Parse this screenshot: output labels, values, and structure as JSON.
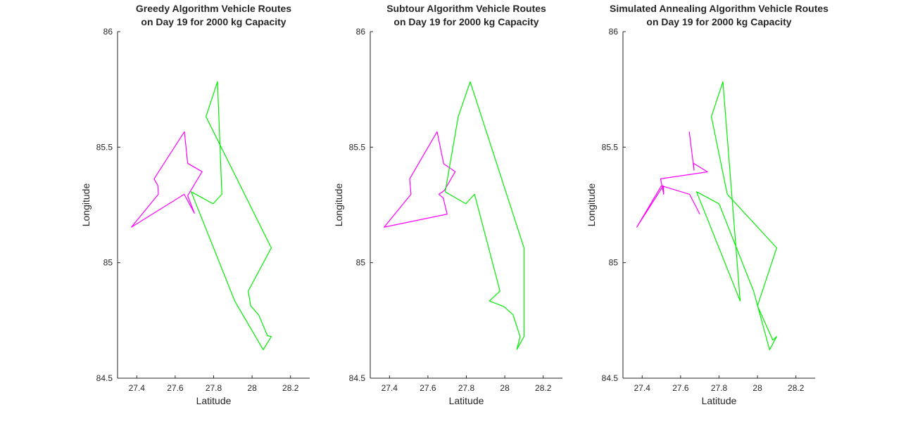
{
  "chart_data": [
    {
      "type": "line",
      "title": "Greedy Algorithm Vehicle Routes",
      "subtitle": "on Day 19 for 2000 kg Capacity",
      "xlabel": "Latitude",
      "ylabel": "Longitude",
      "xlim": [
        27.3,
        28.3
      ],
      "ylim": [
        84.5,
        86
      ],
      "xticks": [
        "27.4",
        "27.6",
        "27.8",
        "28",
        "28.2"
      ],
      "yticks": [
        "84.5",
        "85",
        "85.5",
        "86"
      ],
      "grid": false,
      "series": [
        {
          "color": "#ff00ff",
          "x": [
            27.648,
            27.665,
            27.74,
            27.665,
            27.7,
            27.647,
            27.372,
            27.512,
            27.51,
            27.49,
            27.648
          ],
          "y": [
            85.567,
            85.43,
            85.394,
            85.29,
            85.214,
            85.296,
            85.154,
            85.296,
            85.333,
            85.363,
            85.567
          ]
        },
        {
          "color": "#00ee00",
          "x": [
            27.76,
            27.82,
            27.843,
            27.797,
            27.683,
            27.91,
            28.058,
            28.1,
            28.08,
            28.035,
            27.993,
            27.98,
            28.1,
            27.76
          ],
          "y": [
            85.632,
            85.783,
            85.296,
            85.255,
            85.307,
            84.834,
            84.623,
            84.68,
            84.684,
            84.773,
            84.813,
            84.877,
            85.064,
            85.632
          ]
        }
      ]
    },
    {
      "type": "line",
      "title": "Subtour Algorithm Vehicle Routes",
      "subtitle": "on Day 19 for 2000 kg Capacity",
      "xlabel": "Latitude",
      "ylabel": "Longitude",
      "xlim": [
        27.3,
        28.3
      ],
      "ylim": [
        84.5,
        86
      ],
      "xticks": [
        "27.4",
        "27.6",
        "27.8",
        "28",
        "28.2"
      ],
      "yticks": [
        "84.5",
        "85",
        "85.5",
        "86"
      ],
      "grid": false,
      "series": [
        {
          "color": "#ff00ff",
          "x": [
            27.648,
            27.682,
            27.742,
            27.685,
            27.657,
            27.68,
            27.7,
            27.372,
            27.512,
            27.505,
            27.648
          ],
          "y": [
            85.567,
            85.428,
            85.394,
            85.312,
            85.296,
            85.28,
            85.21,
            85.154,
            85.296,
            85.363,
            85.567
          ]
        },
        {
          "color": "#00ee00",
          "x": [
            27.69,
            27.758,
            27.82,
            28.1,
            28.1,
            28.063,
            28.08,
            28.043,
            27.995,
            27.92,
            27.975,
            27.843,
            27.797,
            27.69
          ],
          "y": [
            85.307,
            85.632,
            85.783,
            85.064,
            84.68,
            84.625,
            84.68,
            84.775,
            84.81,
            84.834,
            84.877,
            85.296,
            85.255,
            85.307
          ]
        }
      ]
    },
    {
      "type": "line",
      "title": "Simulated Annealing Algorithm Vehicle Routes",
      "subtitle": "on Day 19 for 2000 kg Capacity",
      "xlabel": "Latitude",
      "ylabel": "Longitude",
      "xlim": [
        27.3,
        28.3
      ],
      "ylim": [
        84.5,
        86
      ],
      "xticks": [
        "27.4",
        "27.6",
        "27.8",
        "28",
        "28.2"
      ],
      "yticks": [
        "84.5",
        "85",
        "85.5",
        "86"
      ],
      "grid": false,
      "series": [
        {
          "color": "#ff00ff",
          "x": [
            27.645,
            27.67,
            27.667,
            27.74,
            27.496,
            27.512,
            27.51,
            27.372,
            27.5,
            27.647,
            27.7
          ],
          "y": [
            85.567,
            85.4,
            85.43,
            85.393,
            85.363,
            85.296,
            85.333,
            85.154,
            85.333,
            85.296,
            85.21
          ]
        },
        {
          "color": "#00ee00",
          "x": [
            27.843,
            28.1,
            28.0,
            28.08,
            28.1,
            28.063,
            27.98,
            27.8,
            27.683,
            27.91,
            27.82,
            27.76,
            27.843
          ],
          "y": [
            85.296,
            85.064,
            84.813,
            84.665,
            84.68,
            84.623,
            84.877,
            85.255,
            85.307,
            84.834,
            85.783,
            85.632,
            85.296
          ]
        }
      ]
    }
  ]
}
